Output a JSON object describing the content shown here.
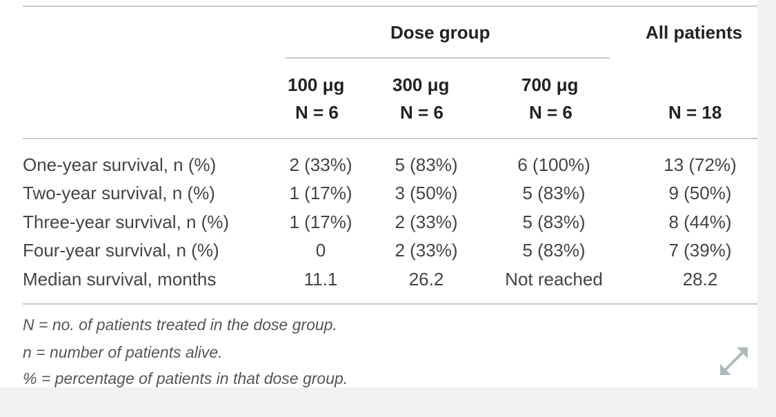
{
  "table": {
    "header": {
      "dose_group": "Dose group",
      "all_patients": "All patients",
      "columns": [
        {
          "dose": "100 μg",
          "n": "N = 6"
        },
        {
          "dose": "300 μg",
          "n": "N = 6"
        },
        {
          "dose": "700 μg",
          "n": "N = 6"
        }
      ],
      "all_n": "N = 18"
    },
    "rows": [
      {
        "label": "One-year survival, n (%)",
        "values": [
          "2 (33%)",
          "5 (83%)",
          "6 (100%)",
          "13 (72%)"
        ]
      },
      {
        "label": "Two-year survival, n (%)",
        "values": [
          "1 (17%)",
          "3 (50%)",
          "5 (83%)",
          "9 (50%)"
        ]
      },
      {
        "label": "Three-year survival, n (%)",
        "values": [
          "1 (17%)",
          "2 (33%)",
          "5 (83%)",
          "8 (44%)"
        ]
      },
      {
        "label": "Four-year survival, n (%)",
        "values": [
          "0",
          "2 (33%)",
          "5 (83%)",
          "7 (39%)"
        ]
      },
      {
        "label": "Median survival, months",
        "values": [
          "11.1",
          "26.2",
          "Not reached",
          "28.2"
        ]
      }
    ],
    "footnotes": [
      "N = no. of patients treated in the dose group.",
      "n = number of patients alive.",
      "% = percentage of patients in that dose group."
    ]
  },
  "expand_icon": "expand-arrows-icon"
}
